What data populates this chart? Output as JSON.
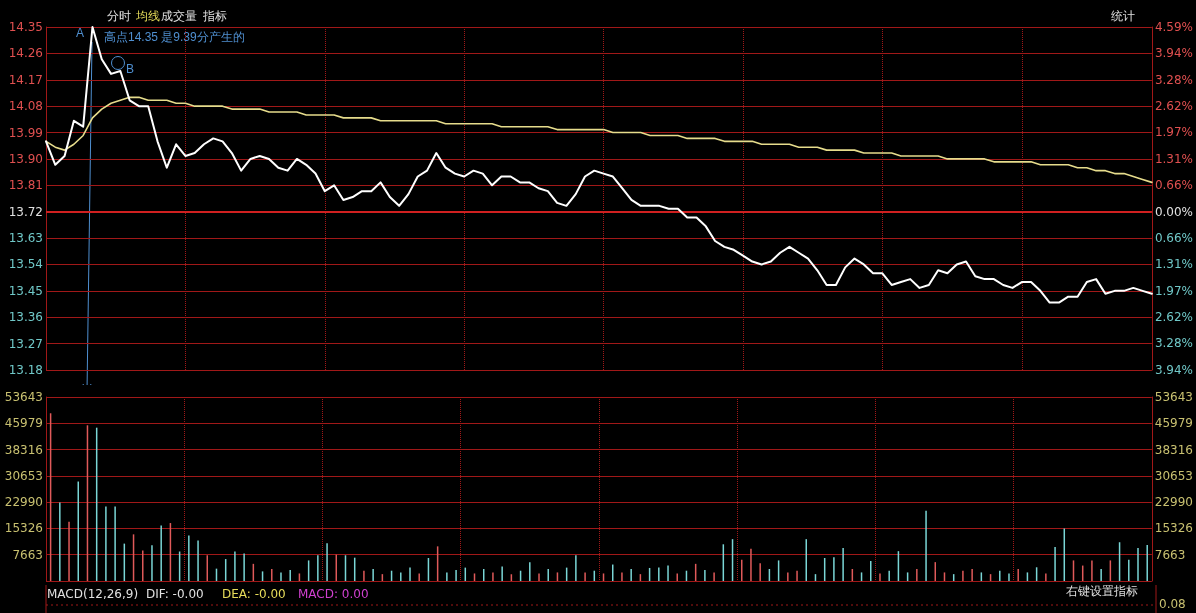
{
  "chart_data": [
    {
      "type": "line",
      "annotations": [
        "分时",
        "均线",
        "成交量",
        "指标",
        "统计",
        "高点14.35 是9.39分产生的",
        "A",
        "B"
      ],
      "categories": [
        null,
        null,
        null,
        null,
        null,
        null,
        null,
        null,
        null,
        null,
        null,
        null,
        null,
        null,
        null,
        null,
        null,
        null,
        null,
        null,
        null,
        null,
        null,
        null,
        null,
        null,
        null,
        null,
        null,
        null,
        null,
        null,
        null,
        null,
        null,
        null,
        null,
        null,
        null,
        null,
        null,
        null,
        null,
        null,
        null,
        null,
        null,
        null,
        null,
        null,
        null,
        null,
        null,
        null,
        null,
        null,
        null,
        null,
        null,
        null,
        null,
        null,
        null,
        null,
        null,
        null,
        null,
        null,
        null,
        null,
        null,
        null,
        null,
        null,
        null,
        null,
        null,
        null,
        null,
        null,
        null,
        null,
        null,
        null,
        null,
        null,
        null,
        null,
        null,
        null,
        null,
        null,
        null,
        null,
        null,
        null,
        null,
        null,
        null,
        null,
        null,
        null,
        null,
        null,
        null,
        null,
        null,
        null,
        null,
        null,
        null,
        null,
        null,
        null,
        null,
        null,
        null,
        null,
        null,
        null
      ],
      "series": [
        {
          "color": "#ffffff",
          "values": [
            13.96,
            13.88,
            13.91,
            14.03,
            14.01,
            14.35,
            14.24,
            14.19,
            14.2,
            14.1,
            14.08,
            14.08,
            13.96,
            13.87,
            13.95,
            13.91,
            13.92,
            13.95,
            13.97,
            13.96,
            13.92,
            13.86,
            13.9,
            13.91,
            13.9,
            13.87,
            13.86,
            13.9,
            13.88,
            13.85,
            13.79,
            13.81,
            13.76,
            13.77,
            13.79,
            13.79,
            13.82,
            13.77,
            13.74,
            13.78,
            13.84,
            13.86,
            13.92,
            13.87,
            13.85,
            13.84,
            13.86,
            13.85,
            13.81,
            13.84,
            13.84,
            13.82,
            13.82,
            13.8,
            13.79,
            13.75,
            13.74,
            13.78,
            13.84,
            13.86,
            13.85,
            13.84,
            13.8,
            13.76,
            13.74,
            13.74,
            13.74,
            13.73,
            13.73,
            13.7,
            13.7,
            13.67,
            13.62,
            13.6,
            13.59,
            13.57,
            13.55,
            13.54,
            13.55,
            13.58,
            13.6,
            13.58,
            13.56,
            13.52,
            13.47,
            13.47,
            13.53,
            13.56,
            13.54,
            13.51,
            13.51,
            13.47,
            13.48,
            13.49,
            13.46,
            13.47,
            13.52,
            13.51,
            13.54,
            13.55,
            13.5,
            13.49,
            13.49,
            13.47,
            13.46,
            13.48,
            13.48,
            13.45,
            13.41,
            13.41,
            13.43,
            13.43,
            13.48,
            13.49,
            13.44,
            13.45,
            13.45,
            13.46,
            13.45,
            13.44
          ]
        },
        {
          "color": "#e6dc8c",
          "values": [
            13.96,
            13.94,
            13.93,
            13.95,
            13.98,
            14.04,
            14.07,
            14.09,
            14.1,
            14.11,
            14.11,
            14.1,
            14.1,
            14.1,
            14.09,
            14.09,
            14.08,
            14.08,
            14.08,
            14.08,
            14.07,
            14.07,
            14.07,
            14.07,
            14.06,
            14.06,
            14.06,
            14.06,
            14.05,
            14.05,
            14.05,
            14.05,
            14.04,
            14.04,
            14.04,
            14.04,
            14.03,
            14.03,
            14.03,
            14.03,
            14.03,
            14.03,
            14.03,
            14.02,
            14.02,
            14.02,
            14.02,
            14.02,
            14.02,
            14.01,
            14.01,
            14.01,
            14.01,
            14.01,
            14.01,
            14.0,
            14.0,
            14.0,
            14.0,
            14.0,
            14.0,
            13.99,
            13.99,
            13.99,
            13.99,
            13.98,
            13.98,
            13.98,
            13.98,
            13.97,
            13.97,
            13.97,
            13.97,
            13.96,
            13.96,
            13.96,
            13.96,
            13.95,
            13.95,
            13.95,
            13.95,
            13.94,
            13.94,
            13.94,
            13.93,
            13.93,
            13.93,
            13.93,
            13.92,
            13.92,
            13.92,
            13.92,
            13.91,
            13.91,
            13.91,
            13.91,
            13.91,
            13.9,
            13.9,
            13.9,
            13.9,
            13.9,
            13.89,
            13.89,
            13.89,
            13.89,
            13.89,
            13.88,
            13.88,
            13.88,
            13.88,
            13.87,
            13.87,
            13.86,
            13.86,
            13.85,
            13.85,
            13.84,
            13.83,
            13.82
          ]
        }
      ],
      "ylim": [
        13.18,
        14.35
      ],
      "yticks": [
        14.35,
        14.26,
        14.17,
        14.08,
        13.99,
        {
          "value": 13.9,
          "label": "13.90"
        },
        13.81,
        13.72,
        13.63,
        13.54,
        13.45,
        13.36,
        13.27,
        13.18
      ],
      "y2lim": [
        -3.94,
        4.59
      ],
      "y2ticks": [
        {
          "value": 4.59,
          "label": "4.59%"
        },
        {
          "value": 3.94,
          "label": "3.94%"
        },
        {
          "value": 3.28,
          "label": "3.28%"
        },
        {
          "value": 2.62,
          "label": "2.62%"
        },
        {
          "value": 1.97,
          "label": "1.97%"
        },
        {
          "value": 1.31,
          "label": "1.31%"
        },
        {
          "value": 0.66,
          "label": "0.66%"
        },
        {
          "value": 0,
          "label": "0.00%"
        },
        {
          "value": -0.66,
          "label": "0.66%"
        },
        {
          "value": -1.31,
          "label": "1.31%"
        },
        {
          "value": -1.97,
          "label": "1.97%"
        },
        {
          "value": -2.62,
          "label": "2.62%"
        },
        {
          "value": -3.28,
          "label": "3.28%"
        },
        {
          "value": -3.94,
          "label": "3.94%"
        }
      ],
      "ref_lines": [
        {
          "axis": "y",
          "value": 13.72,
          "color": "#d02020"
        }
      ],
      "grid": true,
      "tick_labels": "y",
      "line_style": "solid",
      "marker": "none"
    },
    {
      "type": "bar",
      "categories": [
        null,
        null,
        null,
        null,
        null,
        null,
        null,
        null,
        null,
        null,
        null,
        null,
        null,
        null,
        null,
        null,
        null,
        null,
        null,
        null,
        null,
        null,
        null,
        null,
        null,
        null,
        null,
        null,
        null,
        null,
        null,
        null,
        null,
        null,
        null,
        null,
        null,
        null,
        null,
        null,
        null,
        null,
        null,
        null,
        null,
        null,
        null,
        null,
        null,
        null,
        null,
        null,
        null,
        null,
        null,
        null,
        null,
        null,
        null,
        null,
        null,
        null,
        null,
        null,
        null,
        null,
        null,
        null,
        null,
        null,
        null,
        null,
        null,
        null,
        null,
        null,
        null,
        null,
        null,
        null,
        null,
        null,
        null,
        null,
        null,
        null,
        null,
        null,
        null,
        null,
        null,
        null,
        null,
        null,
        null,
        null,
        null,
        null,
        null,
        null,
        null,
        null,
        null,
        null,
        null,
        null,
        null,
        null,
        null,
        null,
        null,
        null,
        null,
        null,
        null,
        null,
        null,
        null,
        null,
        null
      ],
      "values": [
        48900,
        22900,
        17300,
        29000,
        45400,
        44700,
        21700,
        21700,
        10900,
        13600,
        8900,
        10400,
        16200,
        16900,
        8600,
        13300,
        11800,
        7500,
        3600,
        6400,
        8600,
        8000,
        5000,
        2800,
        3500,
        2500,
        3200,
        2200,
        6000,
        7500,
        11000,
        7700,
        7500,
        6800,
        3000,
        3500,
        2000,
        3000,
        2500,
        3900,
        2200,
        6700,
        10100,
        2500,
        3200,
        3900,
        2200,
        3500,
        2500,
        4200,
        2000,
        3000,
        5500,
        2200,
        3500,
        2500,
        3900,
        7500,
        2500,
        3000,
        2200,
        4800,
        2500,
        3500,
        2000,
        3800,
        3900,
        4500,
        2200,
        3000,
        5000,
        3200,
        2500,
        10700,
        12200,
        6200,
        9400,
        5200,
        3500,
        6000,
        2500,
        3000,
        12200,
        2000,
        6700,
        6900,
        9600,
        3500,
        2500,
        5800,
        2200,
        3000,
        8700,
        2500,
        3500,
        20500,
        5500,
        2500,
        2000,
        3000,
        3500,
        2500,
        2000,
        3000,
        2200,
        3500,
        2500,
        4000,
        2200,
        9900,
        15300,
        6000,
        4500,
        6000,
        3500,
        6000,
        11300,
        6200,
        9600,
        10500
      ],
      "colors": [
        "#e05a5a",
        "#7ad6d6",
        "#e05a5a",
        "#7ad6d6",
        "#e05a5a",
        "#7ad6d6",
        "#7ad6d6",
        "#7ad6d6",
        "#7ad6d6",
        "#e05a5a",
        "#e05a5a",
        "#7ad6d6",
        "#7ad6d6",
        "#e05a5a",
        "#7ad6d6",
        "#7ad6d6",
        "#7ad6d6",
        "#e05a5a",
        "#7ad6d6",
        "#7ad6d6",
        "#7ad6d6",
        "#7ad6d6",
        "#e05a5a",
        "#7ad6d6",
        "#e05a5a",
        "#7ad6d6",
        "#7ad6d6",
        "#e05a5a",
        "#7ad6d6",
        "#7ad6d6",
        "#7ad6d6",
        "#e05a5a",
        "#7ad6d6",
        "#7ad6d6",
        "#e05a5a",
        "#7ad6d6",
        "#e05a5a",
        "#7ad6d6",
        "#7ad6d6",
        "#7ad6d6",
        "#e05a5a",
        "#7ad6d6",
        "#e05a5a",
        "#7ad6d6",
        "#7ad6d6",
        "#7ad6d6",
        "#e05a5a",
        "#7ad6d6",
        "#e05a5a",
        "#7ad6d6",
        "#e05a5a",
        "#7ad6d6",
        "#7ad6d6",
        "#e05a5a",
        "#7ad6d6",
        "#e05a5a",
        "#7ad6d6",
        "#7ad6d6",
        "#e05a5a",
        "#7ad6d6",
        "#e05a5a",
        "#7ad6d6",
        "#e05a5a",
        "#7ad6d6",
        "#e05a5a",
        "#7ad6d6",
        "#7ad6d6",
        "#7ad6d6",
        "#e05a5a",
        "#7ad6d6",
        "#e05a5a",
        "#7ad6d6",
        "#e05a5a",
        "#7ad6d6",
        "#7ad6d6",
        "#e05a5a",
        "#e05a5a",
        "#e05a5a",
        "#7ad6d6",
        "#7ad6d6",
        "#e05a5a",
        "#e05a5a",
        "#7ad6d6",
        "#7ad6d6",
        "#7ad6d6",
        "#7ad6d6",
        "#7ad6d6",
        "#e05a5a",
        "#7ad6d6",
        "#7ad6d6",
        "#e05a5a",
        "#7ad6d6",
        "#7ad6d6",
        "#7ad6d6",
        "#e05a5a",
        "#7ad6d6",
        "#e05a5a",
        "#e05a5a",
        "#7ad6d6",
        "#e05a5a",
        "#e05a5a",
        "#7ad6d6",
        "#e05a5a",
        "#7ad6d6",
        "#7ad6d6",
        "#e05a5a",
        "#7ad6d6",
        "#7ad6d6",
        "#e05a5a",
        "#7ad6d6",
        "#7ad6d6",
        "#e05a5a",
        "#e05a5a",
        "#e05a5a",
        "#7ad6d6",
        "#e05a5a",
        "#7ad6d6",
        "#7ad6d6",
        "#7ad6d6",
        "#7ad6d6"
      ],
      "ylim": [
        0,
        53643
      ],
      "yticks": [
        {
          "value": 0,
          "label": null
        },
        7663,
        15326,
        22990,
        30653,
        38316,
        45979,
        53643
      ],
      "y2lim": [
        0,
        53643
      ],
      "y2ticks": [
        {
          "value": 0,
          "label": null
        },
        7663,
        15326,
        22990,
        30653,
        38316,
        45979,
        53643
      ],
      "grid": true,
      "tick_labels": "y"
    },
    {
      "type": "other",
      "title": "MACD(12,26,9)",
      "annotations": [
        "DIF: -0.00",
        "DEA: -0.00",
        "MACD: 0.00",
        "0.08",
        "右键设置指标"
      ]
    }
  ]
}
